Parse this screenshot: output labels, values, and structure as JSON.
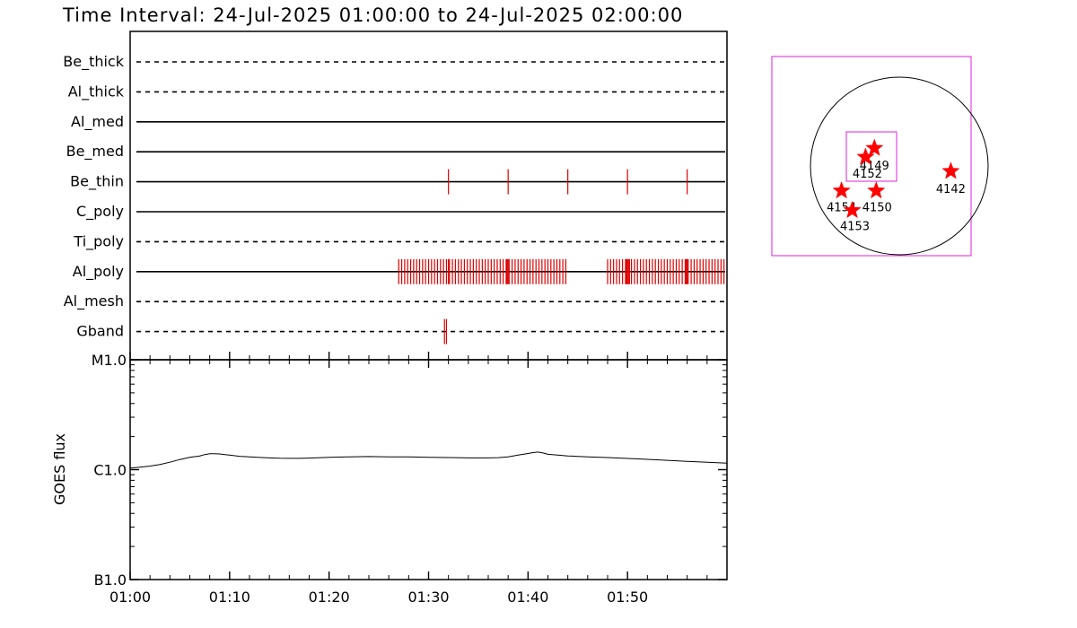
{
  "title": "Time Interval: 24-Jul-2025 01:00:00 to 24-Jul-2025 02:00:00",
  "colors": {
    "axis": "#000000",
    "mark": "#dd0000",
    "box": "#dd22dd",
    "star": "#ff0000"
  },
  "chart_data": [
    {
      "type": "event-timeline",
      "x_range_min": [
        0,
        60
      ],
      "rows": [
        {
          "name": "Be_thick",
          "style": "dashed",
          "marks": []
        },
        {
          "name": "Al_thick",
          "style": "dashed",
          "marks": []
        },
        {
          "name": "Al_med",
          "style": "solid",
          "marks": []
        },
        {
          "name": "Be_med",
          "style": "solid",
          "marks": []
        },
        {
          "name": "Be_thin",
          "style": "solid",
          "marks": [
            32,
            38,
            44,
            50,
            56
          ]
        },
        {
          "name": "C_poly",
          "style": "solid",
          "marks": []
        },
        {
          "name": "Ti_poly",
          "style": "dashed",
          "marks": []
        },
        {
          "name": "Al_poly",
          "style": "solid",
          "marks": [
            27.0,
            27.3,
            27.6,
            27.9,
            28.2,
            28.5,
            28.8,
            29.1,
            29.4,
            29.7,
            30.0,
            30.3,
            30.6,
            30.9,
            31.2,
            31.5,
            31.8,
            32.0,
            32.1,
            32.4,
            32.7,
            33.0,
            33.3,
            33.6,
            33.9,
            34.2,
            34.5,
            34.8,
            35.1,
            35.4,
            35.7,
            36.0,
            36.3,
            36.6,
            36.9,
            37.2,
            37.5,
            37.8,
            37.9,
            38.0,
            38.1,
            38.4,
            38.7,
            39.0,
            39.3,
            39.6,
            39.9,
            40.2,
            40.5,
            40.8,
            41.1,
            41.4,
            41.7,
            42.0,
            42.3,
            42.6,
            42.9,
            43.2,
            43.5,
            43.8,
            48.0,
            48.3,
            48.6,
            48.9,
            49.2,
            49.5,
            49.8,
            49.9,
            50.0,
            50.1,
            50.2,
            50.4,
            50.7,
            51.0,
            51.3,
            51.6,
            51.9,
            52.2,
            52.5,
            52.8,
            53.1,
            53.4,
            53.7,
            54.0,
            54.3,
            54.6,
            54.9,
            55.2,
            55.5,
            55.8,
            55.9,
            56.0,
            56.1,
            56.4,
            56.7,
            57.0,
            57.3,
            57.6,
            57.9,
            58.2,
            58.5,
            58.8,
            59.1,
            59.4,
            59.7
          ]
        },
        {
          "name": "Al_mesh",
          "style": "dashed",
          "marks": []
        },
        {
          "name": "Gband",
          "style": "dashed",
          "marks": [
            31.6,
            31.8
          ]
        }
      ]
    },
    {
      "type": "line",
      "ylabel": "GOES flux",
      "y_scale": "log",
      "y_ticks": [
        "M1.0",
        "C1.0",
        "B1.0"
      ],
      "x_ticks": [
        "01:00",
        "01:10",
        "01:20",
        "01:30",
        "01:40",
        "01:50"
      ],
      "x_tick_minutes": [
        0,
        10,
        20,
        30,
        40,
        50
      ],
      "x_range_min": [
        0,
        60
      ],
      "y_range_decades": [
        -7,
        -5
      ],
      "series": [
        {
          "x": [
            0,
            1,
            2,
            3,
            4,
            5,
            6,
            7,
            7.5,
            8,
            8.5,
            9,
            10,
            11,
            12,
            13,
            14,
            15,
            16,
            17,
            18,
            20,
            22,
            24,
            26,
            28,
            30,
            32,
            34,
            35,
            36,
            37,
            38,
            39,
            40,
            40.5,
            41,
            41.5,
            42,
            43,
            44,
            45,
            46,
            48,
            50,
            52,
            54,
            56,
            58,
            60
          ],
          "y_log": [
            -5.985,
            -5.977,
            -5.967,
            -5.953,
            -5.932,
            -5.908,
            -5.888,
            -5.875,
            -5.863,
            -5.855,
            -5.855,
            -5.857,
            -5.868,
            -5.878,
            -5.884,
            -5.889,
            -5.893,
            -5.896,
            -5.897,
            -5.897,
            -5.895,
            -5.888,
            -5.883,
            -5.881,
            -5.883,
            -5.884,
            -5.887,
            -5.89,
            -5.893,
            -5.893,
            -5.893,
            -5.891,
            -5.883,
            -5.868,
            -5.853,
            -5.845,
            -5.84,
            -5.848,
            -5.86,
            -5.868,
            -5.875,
            -5.879,
            -5.883,
            -5.89,
            -5.898,
            -5.906,
            -5.915,
            -5.925,
            -5.932,
            -5.94
          ]
        }
      ]
    },
    {
      "type": "scatter",
      "points": [
        {
          "label": "4149",
          "x": 0.72,
          "y": 0.2
        },
        {
          "label": "4152",
          "x": 0.62,
          "y": 0.1
        },
        {
          "label": "4142",
          "x": 1.58,
          "y": -0.06
        },
        {
          "label": "4154",
          "x": 0.35,
          "y": -0.28
        },
        {
          "label": "4150",
          "x": 0.74,
          "y": -0.28
        },
        {
          "label": "4153",
          "x": 0.47,
          "y": -0.5
        }
      ]
    }
  ]
}
